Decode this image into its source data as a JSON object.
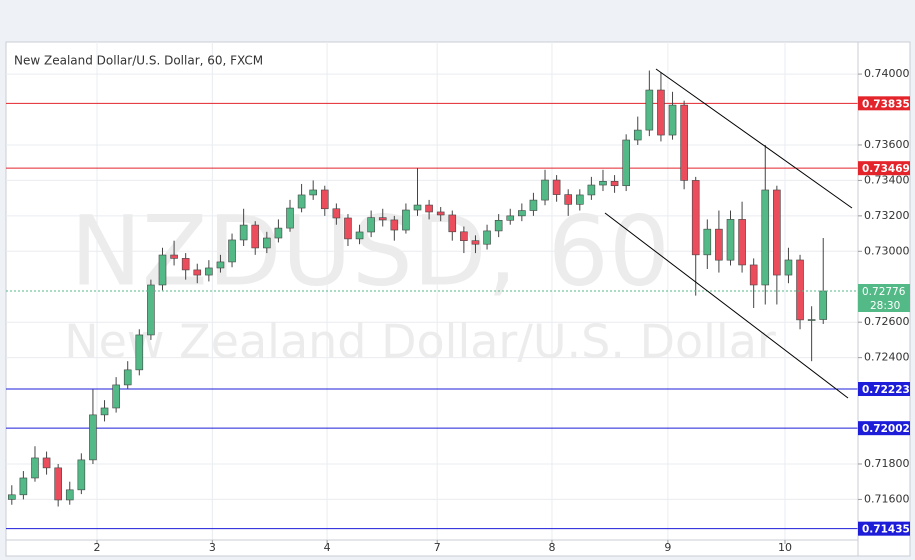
{
  "chart_data": {
    "type": "candlestick",
    "title": "New Zealand Dollar/U.S. Dollar, 60, FXCM",
    "watermark": "NZDUSD, 60",
    "watermark_subtitle": "New Zealand Dollar/U.S. Dollar",
    "countdown": "28:30",
    "up_color": "#53b987",
    "down_color": "#eb4d5c",
    "xlim": [
      -0.5,
      73
    ],
    "xticks": [
      {
        "value": 7.35,
        "label": "2"
      },
      {
        "value": 17.3,
        "label": "3"
      },
      {
        "value": 27.2,
        "label": "4"
      },
      {
        "value": 36.7,
        "label": "7"
      },
      {
        "value": 46.6,
        "label": "8"
      },
      {
        "value": 56.6,
        "label": "9"
      },
      {
        "value": 66.7,
        "label": "10"
      }
    ],
    "ylim": [
      0.71371,
      0.74181
    ],
    "yticks": [
      {
        "value": 0.74,
        "label": "0.74000"
      },
      {
        "value": 0.736,
        "label": "0.73600"
      },
      {
        "value": 0.734,
        "label": "0.73400"
      },
      {
        "value": 0.732,
        "label": "0.73200"
      },
      {
        "value": 0.73,
        "label": "0.73000"
      },
      {
        "value": 0.726,
        "label": "0.72600"
      },
      {
        "value": 0.724,
        "label": "0.72400"
      },
      {
        "value": 0.718,
        "label": "0.71800"
      },
      {
        "value": 0.716,
        "label": "0.71600"
      }
    ],
    "grid": true,
    "levels": [
      {
        "value": 0.73835,
        "color": "#e3242b"
      },
      {
        "value": 0.73469,
        "color": "#e3242b"
      },
      {
        "value": 0.72223,
        "color": "#1c1cd9"
      },
      {
        "value": 0.72002,
        "color": "#1c1cd9"
      },
      {
        "value": 0.71435,
        "color": "#1c1cd9"
      }
    ],
    "open": [
      0.716,
      0.71626,
      0.71721,
      0.71834,
      0.71778,
      0.71597,
      0.71654,
      0.71823,
      0.72077,
      0.72116,
      0.72246,
      0.72331,
      0.72528,
      0.7281,
      0.72979,
      0.7296,
      0.72895,
      0.72866,
      0.72906,
      0.7294,
      0.73064,
      0.73148,
      0.73019,
      0.73075,
      0.73131,
      0.73244,
      0.73318,
      0.73346,
      0.7324,
      0.73188,
      0.7307,
      0.73109,
      0.7319,
      0.73177,
      0.7312,
      0.73233,
      0.73261,
      0.73222,
      0.73205,
      0.7311,
      0.7306,
      0.7304,
      0.73115,
      0.73175,
      0.732,
      0.7323,
      0.73289,
      0.73402,
      0.7332,
      0.73265,
      0.73318,
      0.73374,
      0.73395,
      0.7337,
      0.73628,
      0.73684,
      0.7391,
      0.73656,
      0.73825,
      0.734,
      0.7298,
      0.73125,
      0.7295,
      0.7318,
      0.72923,
      0.7281,
      0.73346,
      0.72866,
      0.72951,
      0.72613,
      0.72615
    ],
    "high": [
      0.7168,
      0.7176,
      0.719,
      0.7187,
      0.718,
      0.717,
      0.7186,
      0.7222,
      0.7216,
      0.7229,
      0.7238,
      0.7256,
      0.7284,
      0.7302,
      0.7306,
      0.7299,
      0.7293,
      0.7295,
      0.7298,
      0.731,
      0.7324,
      0.7317,
      0.7311,
      0.7318,
      0.7329,
      0.7338,
      0.734,
      0.7337,
      0.7327,
      0.7321,
      0.7315,
      0.7323,
      0.7324,
      0.732,
      0.7327,
      0.7347,
      0.7329,
      0.7325,
      0.7323,
      0.7314,
      0.7309,
      0.7315,
      0.7321,
      0.7324,
      0.7327,
      0.7333,
      0.7346,
      0.7343,
      0.7335,
      0.7335,
      0.7342,
      0.7346,
      0.7343,
      0.7366,
      0.7376,
      0.7402,
      0.7401,
      0.739,
      0.7385,
      0.7342,
      0.7318,
      0.7323,
      0.7323,
      0.7328,
      0.7296,
      0.736,
      0.7337,
      0.7302,
      0.7298,
      0.7269,
      0.73075
    ],
    "low": [
      0.7157,
      0.716,
      0.717,
      0.7174,
      0.7156,
      0.7157,
      0.7163,
      0.718,
      0.7204,
      0.7209,
      0.7222,
      0.723,
      0.725,
      0.7278,
      0.7292,
      0.7284,
      0.7282,
      0.7283,
      0.7288,
      0.7291,
      0.7303,
      0.7298,
      0.7299,
      0.7305,
      0.7311,
      0.7322,
      0.7329,
      0.732,
      0.7315,
      0.7303,
      0.7304,
      0.7308,
      0.7314,
      0.7306,
      0.731,
      0.732,
      0.7318,
      0.7317,
      0.7306,
      0.7299,
      0.7299,
      0.7301,
      0.7308,
      0.7315,
      0.7317,
      0.732,
      0.7326,
      0.7328,
      0.732,
      0.7323,
      0.7329,
      0.7334,
      0.7333,
      0.7334,
      0.736,
      0.7365,
      0.7362,
      0.7363,
      0.7335,
      0.7275,
      0.729,
      0.7288,
      0.7292,
      0.7288,
      0.7268,
      0.727,
      0.727,
      0.7282,
      0.7256,
      0.7238,
      0.7259
    ],
    "close": [
      0.71626,
      0.71721,
      0.71834,
      0.71778,
      0.71597,
      0.71654,
      0.71823,
      0.72077,
      0.72116,
      0.72246,
      0.72331,
      0.72528,
      0.7281,
      0.72979,
      0.7296,
      0.72895,
      0.72866,
      0.72906,
      0.7294,
      0.73064,
      0.73148,
      0.73019,
      0.73075,
      0.73131,
      0.73244,
      0.73318,
      0.73346,
      0.7324,
      0.73188,
      0.7307,
      0.73109,
      0.7319,
      0.73177,
      0.7312,
      0.73233,
      0.73261,
      0.73222,
      0.73205,
      0.7311,
      0.7306,
      0.7304,
      0.73115,
      0.73175,
      0.732,
      0.7323,
      0.73289,
      0.73402,
      0.7332,
      0.73265,
      0.73318,
      0.73374,
      0.73395,
      0.7337,
      0.73628,
      0.73684,
      0.7391,
      0.73656,
      0.73825,
      0.734,
      0.7298,
      0.73125,
      0.7295,
      0.7318,
      0.72923,
      0.7281,
      0.73346,
      0.72866,
      0.72951,
      0.72613,
      0.72615,
      0.72776
    ]
  }
}
